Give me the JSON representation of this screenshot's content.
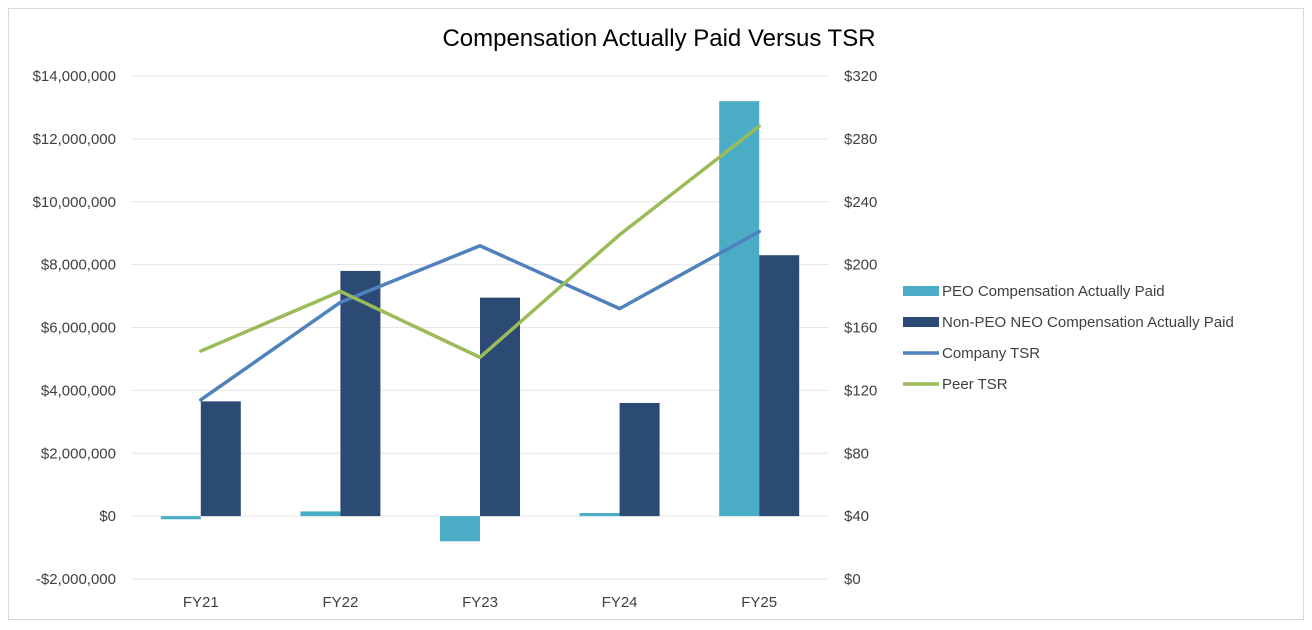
{
  "chart_data": {
    "type": "bar",
    "title": "Compensation Actually Paid Versus TSR",
    "categories": [
      "FY21",
      "FY22",
      "FY23",
      "FY24",
      "FY25"
    ],
    "left_axis": {
      "ylim": [
        -2000000,
        14000000
      ],
      "ticks": [
        -2000000,
        0,
        2000000,
        4000000,
        6000000,
        8000000,
        10000000,
        12000000,
        14000000
      ],
      "tick_labels": [
        "-$2,000,000",
        "$0",
        "$2,000,000",
        "$4,000,000",
        "$6,000,000",
        "$8,000,000",
        "$10,000,000",
        "$12,000,000",
        "$14,000,000"
      ]
    },
    "right_axis": {
      "ylim": [
        0,
        320
      ],
      "ticks": [
        0,
        40,
        80,
        120,
        160,
        200,
        240,
        280,
        320
      ],
      "tick_labels": [
        "$0",
        "$40",
        "$80",
        "$120",
        "$160",
        "$200",
        "$240",
        "$280",
        "$320"
      ]
    },
    "bar_series": [
      {
        "name": "PEO Compensation Actually Paid",
        "color": "#4bacc6",
        "axis": "left",
        "values": [
          -100000,
          150000,
          -800000,
          100000,
          13200000
        ]
      },
      {
        "name": "Non-PEO NEO Compensation Actually Paid",
        "color": "#2b4a74",
        "axis": "left",
        "values": [
          3650000,
          7800000,
          6950000,
          3600000,
          8300000
        ]
      }
    ],
    "line_series": [
      {
        "name": "Company TSR",
        "color": "#4f81bd",
        "axis": "right",
        "values": [
          114,
          176,
          212,
          172,
          221
        ]
      },
      {
        "name": "Peer TSR",
        "color": "#9bbb59",
        "axis": "right",
        "values": [
          145,
          183,
          141,
          219,
          288
        ]
      }
    ],
    "legend_position": "right",
    "grid": true
  }
}
